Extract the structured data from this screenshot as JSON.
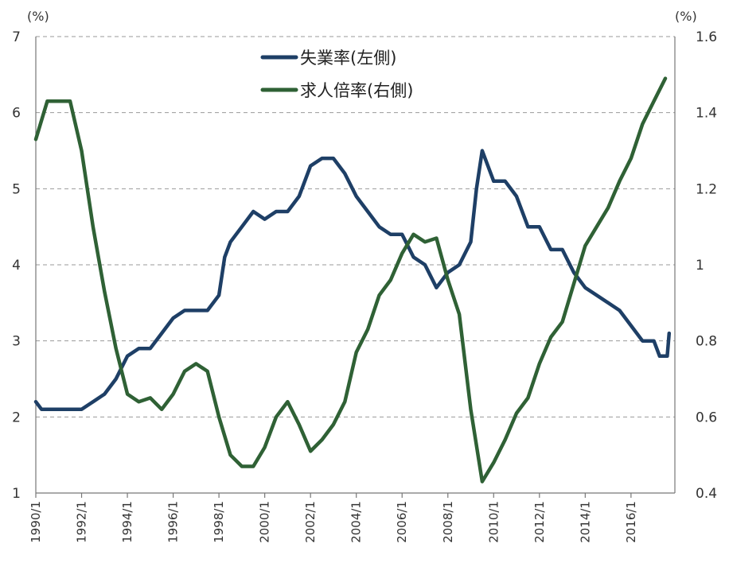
{
  "chart_data": {
    "type": "line",
    "title": "",
    "y_left": {
      "unit": "(%)",
      "range": [
        1,
        7
      ],
      "ticks": [
        "1",
        "2",
        "3",
        "4",
        "5",
        "6",
        "7"
      ]
    },
    "y_right": {
      "unit": "(%)",
      "range": [
        0.4,
        1.6
      ],
      "ticks": [
        "0.4",
        "0.6",
        "0.8",
        "1",
        "1.2",
        "1.4",
        "1.6"
      ]
    },
    "x_axis": {
      "range": [
        "1990/1",
        "2017/12"
      ],
      "tick_labels": [
        "1990/1",
        "1992/1",
        "1994/1",
        "1996/1",
        "1998/1",
        "2000/1",
        "2002/1",
        "2004/1",
        "2006/1",
        "2008/1",
        "2010/1",
        "2012/1",
        "2014/1",
        "2016/1"
      ]
    },
    "grid": "horizontal dashed",
    "legend_position": "top-center",
    "colors": {
      "unemployment": "#1e3f66",
      "job_ratio": "#2f6135"
    },
    "series": [
      {
        "name": "失業率(左側)",
        "axis": "left",
        "points": [
          [
            "1990/1",
            2.2
          ],
          [
            "1990/4",
            2.1
          ],
          [
            "1990/7",
            2.1
          ],
          [
            "1991/1",
            2.1
          ],
          [
            "1991/7",
            2.1
          ],
          [
            "1992/1",
            2.1
          ],
          [
            "1992/7",
            2.2
          ],
          [
            "1993/1",
            2.3
          ],
          [
            "1993/7",
            2.5
          ],
          [
            "1994/1",
            2.8
          ],
          [
            "1994/7",
            2.9
          ],
          [
            "1995/1",
            2.9
          ],
          [
            "1995/7",
            3.1
          ],
          [
            "1996/1",
            3.3
          ],
          [
            "1996/7",
            3.4
          ],
          [
            "1997/1",
            3.4
          ],
          [
            "1997/7",
            3.4
          ],
          [
            "1998/1",
            3.6
          ],
          [
            "1998/4",
            4.1
          ],
          [
            "1998/7",
            4.3
          ],
          [
            "1999/1",
            4.5
          ],
          [
            "1999/7",
            4.7
          ],
          [
            "2000/1",
            4.6
          ],
          [
            "2000/7",
            4.7
          ],
          [
            "2001/1",
            4.7
          ],
          [
            "2001/7",
            4.9
          ],
          [
            "2002/1",
            5.3
          ],
          [
            "2002/7",
            5.4
          ],
          [
            "2003/1",
            5.4
          ],
          [
            "2003/7",
            5.2
          ],
          [
            "2004/1",
            4.9
          ],
          [
            "2004/7",
            4.7
          ],
          [
            "2005/1",
            4.5
          ],
          [
            "2005/7",
            4.4
          ],
          [
            "2006/1",
            4.4
          ],
          [
            "2006/7",
            4.1
          ],
          [
            "2007/1",
            4.0
          ],
          [
            "2007/7",
            3.7
          ],
          [
            "2008/1",
            3.9
          ],
          [
            "2008/7",
            4.0
          ],
          [
            "2009/1",
            4.3
          ],
          [
            "2009/4",
            5.0
          ],
          [
            "2009/7",
            5.5
          ],
          [
            "2010/1",
            5.1
          ],
          [
            "2010/7",
            5.1
          ],
          [
            "2011/1",
            4.9
          ],
          [
            "2011/7",
            4.5
          ],
          [
            "2012/1",
            4.5
          ],
          [
            "2012/7",
            4.2
          ],
          [
            "2013/1",
            4.2
          ],
          [
            "2013/7",
            3.9
          ],
          [
            "2014/1",
            3.7
          ],
          [
            "2014/7",
            3.6
          ],
          [
            "2015/1",
            3.5
          ],
          [
            "2015/7",
            3.4
          ],
          [
            "2016/1",
            3.2
          ],
          [
            "2016/7",
            3.0
          ],
          [
            "2017/1",
            3.0
          ],
          [
            "2017/4",
            2.8
          ],
          [
            "2017/8",
            2.8
          ],
          [
            "2017/9",
            3.1
          ]
        ]
      },
      {
        "name": "求人倍率(右側)",
        "axis": "right",
        "points": [
          [
            "1990/1",
            1.33
          ],
          [
            "1990/7",
            1.43
          ],
          [
            "1991/1",
            1.43
          ],
          [
            "1991/7",
            1.43
          ],
          [
            "1992/1",
            1.3
          ],
          [
            "1992/7",
            1.1
          ],
          [
            "1993/1",
            0.93
          ],
          [
            "1993/7",
            0.78
          ],
          [
            "1994/1",
            0.66
          ],
          [
            "1994/7",
            0.64
          ],
          [
            "1995/1",
            0.65
          ],
          [
            "1995/7",
            0.62
          ],
          [
            "1996/1",
            0.66
          ],
          [
            "1996/7",
            0.72
          ],
          [
            "1997/1",
            0.74
          ],
          [
            "1997/7",
            0.72
          ],
          [
            "1998/1",
            0.6
          ],
          [
            "1998/7",
            0.5
          ],
          [
            "1999/1",
            0.47
          ],
          [
            "1999/7",
            0.47
          ],
          [
            "2000/1",
            0.52
          ],
          [
            "2000/7",
            0.6
          ],
          [
            "2001/1",
            0.64
          ],
          [
            "2001/7",
            0.58
          ],
          [
            "2002/1",
            0.51
          ],
          [
            "2002/7",
            0.54
          ],
          [
            "2003/1",
            0.58
          ],
          [
            "2003/7",
            0.64
          ],
          [
            "2004/1",
            0.77
          ],
          [
            "2004/7",
            0.83
          ],
          [
            "2005/1",
            0.92
          ],
          [
            "2005/7",
            0.96
          ],
          [
            "2006/1",
            1.03
          ],
          [
            "2006/7",
            1.08
          ],
          [
            "2007/1",
            1.06
          ],
          [
            "2007/7",
            1.07
          ],
          [
            "2008/1",
            0.96
          ],
          [
            "2008/7",
            0.87
          ],
          [
            "2009/1",
            0.62
          ],
          [
            "2009/7",
            0.43
          ],
          [
            "2010/1",
            0.48
          ],
          [
            "2010/7",
            0.54
          ],
          [
            "2011/1",
            0.61
          ],
          [
            "2011/7",
            0.65
          ],
          [
            "2012/1",
            0.74
          ],
          [
            "2012/7",
            0.81
          ],
          [
            "2013/1",
            0.85
          ],
          [
            "2013/7",
            0.95
          ],
          [
            "2014/1",
            1.05
          ],
          [
            "2014/7",
            1.1
          ],
          [
            "2015/1",
            1.15
          ],
          [
            "2015/7",
            1.22
          ],
          [
            "2016/1",
            1.28
          ],
          [
            "2016/7",
            1.37
          ],
          [
            "2017/1",
            1.43
          ],
          [
            "2017/7",
            1.49
          ]
        ]
      }
    ]
  }
}
